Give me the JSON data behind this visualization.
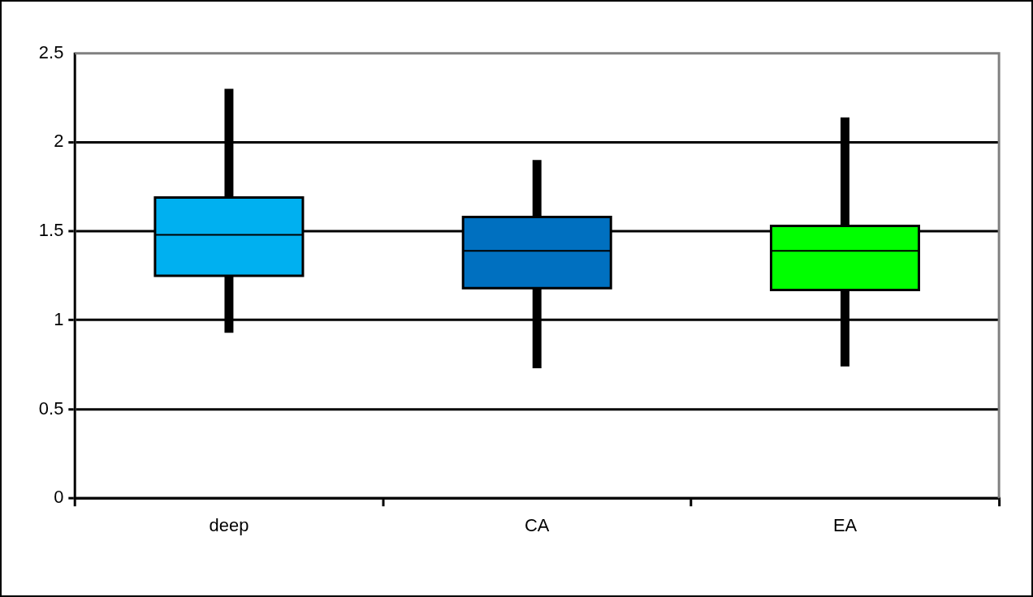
{
  "chart_data": {
    "type": "box",
    "categories": [
      "deep",
      "CA",
      "EA"
    ],
    "boxes": [
      {
        "low": 0.93,
        "q1": 1.25,
        "median": 1.48,
        "q3": 1.69,
        "high": 2.3
      },
      {
        "low": 0.73,
        "q1": 1.18,
        "median": 1.39,
        "q3": 1.58,
        "high": 1.9
      },
      {
        "low": 0.74,
        "q1": 1.17,
        "median": 1.39,
        "q3": 1.53,
        "high": 2.14
      }
    ],
    "colors": [
      "#00b0f0",
      "#0070c0",
      "#00ff00"
    ],
    "ylim": [
      0,
      2.5
    ],
    "yticks": [
      0,
      0.5,
      1,
      1.5,
      2,
      2.5
    ],
    "grid": "y"
  }
}
